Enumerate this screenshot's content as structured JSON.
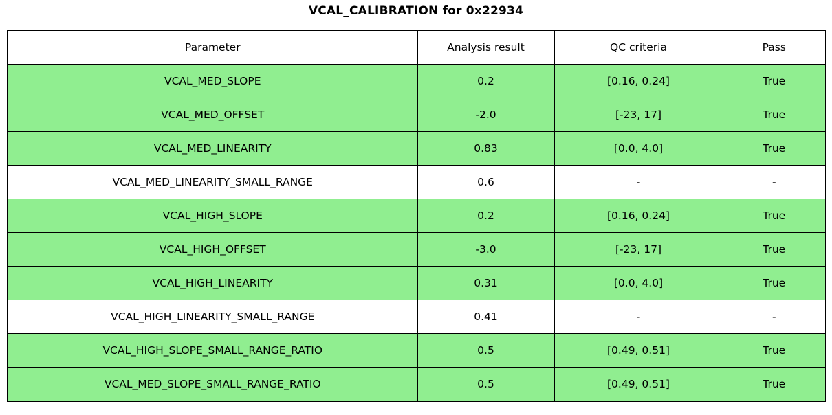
{
  "title": "VCAL_CALIBRATION for 0x22934",
  "colors": {
    "pass_row_background": "#90EE90",
    "neutral_row_background": "#FFFFFF",
    "border": "#000000"
  },
  "chart_data": {
    "type": "table",
    "title": "VCAL_CALIBRATION for 0x22934",
    "columns": [
      "Parameter",
      "Analysis result",
      "QC criteria",
      "Pass"
    ],
    "rows": [
      {
        "parameter": "VCAL_MED_SLOPE",
        "analysis_result": "0.2",
        "qc_criteria": "[0.16, 0.24]",
        "pass": "True",
        "highlighted": true
      },
      {
        "parameter": "VCAL_MED_OFFSET",
        "analysis_result": "-2.0",
        "qc_criteria": "[-23, 17]",
        "pass": "True",
        "highlighted": true
      },
      {
        "parameter": "VCAL_MED_LINEARITY",
        "analysis_result": "0.83",
        "qc_criteria": "[0.0, 4.0]",
        "pass": "True",
        "highlighted": true
      },
      {
        "parameter": "VCAL_MED_LINEARITY_SMALL_RANGE",
        "analysis_result": "0.6",
        "qc_criteria": "-",
        "pass": "-",
        "highlighted": false
      },
      {
        "parameter": "VCAL_HIGH_SLOPE",
        "analysis_result": "0.2",
        "qc_criteria": "[0.16, 0.24]",
        "pass": "True",
        "highlighted": true
      },
      {
        "parameter": "VCAL_HIGH_OFFSET",
        "analysis_result": "-3.0",
        "qc_criteria": "[-23, 17]",
        "pass": "True",
        "highlighted": true
      },
      {
        "parameter": "VCAL_HIGH_LINEARITY",
        "analysis_result": "0.31",
        "qc_criteria": "[0.0, 4.0]",
        "pass": "True",
        "highlighted": true
      },
      {
        "parameter": "VCAL_HIGH_LINEARITY_SMALL_RANGE",
        "analysis_result": "0.41",
        "qc_criteria": "-",
        "pass": "-",
        "highlighted": false
      },
      {
        "parameter": "VCAL_HIGH_SLOPE_SMALL_RANGE_RATIO",
        "analysis_result": "0.5",
        "qc_criteria": "[0.49, 0.51]",
        "pass": "True",
        "highlighted": true
      },
      {
        "parameter": "VCAL_MED_SLOPE_SMALL_RANGE_RATIO",
        "analysis_result": "0.5",
        "qc_criteria": "[0.49, 0.51]",
        "pass": "True",
        "highlighted": true
      }
    ]
  }
}
